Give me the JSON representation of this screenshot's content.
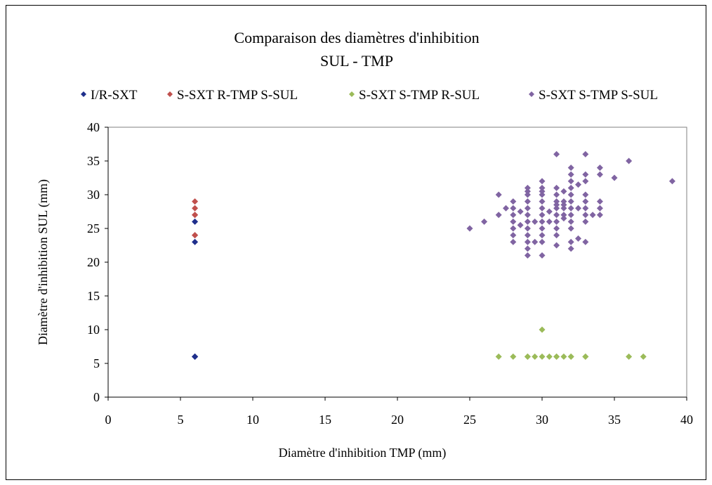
{
  "chart_data": {
    "type": "scatter",
    "title": "Comparaison des diamètres d'inhibition",
    "subtitle": "SUL - TMP",
    "xlabel": "Diamètre d'inhibition TMP (mm)",
    "ylabel": "Diamètre d'inhibition SUL (mm)",
    "xlim": [
      0,
      40
    ],
    "ylim": [
      0,
      40
    ],
    "xticks": [
      "0",
      "5",
      "10",
      "15",
      "20",
      "25",
      "30",
      "35",
      "40"
    ],
    "yticks": [
      "0",
      "5",
      "10",
      "15",
      "20",
      "25",
      "30",
      "35",
      "40"
    ],
    "grid": false,
    "legend_position": "top",
    "series": [
      {
        "name": "I/R-SXT",
        "color": "#1f2f8c",
        "marker": "diamond-icon",
        "points": [
          [
            6,
            6
          ],
          [
            6,
            6
          ],
          [
            6,
            6
          ],
          [
            6,
            23
          ],
          [
            6,
            26
          ]
        ]
      },
      {
        "name": "S-SXT R-TMP S-SUL",
        "color": "#c0504d",
        "marker": "diamond-icon",
        "points": [
          [
            6,
            24
          ],
          [
            6,
            24
          ],
          [
            6,
            27
          ],
          [
            6,
            27
          ],
          [
            6,
            28
          ],
          [
            6,
            29
          ]
        ]
      },
      {
        "name": "S-SXT S-TMP R-SUL",
        "color": "#9bbb59",
        "marker": "diamond-icon",
        "points": [
          [
            27,
            6
          ],
          [
            28,
            6
          ],
          [
            29,
            6
          ],
          [
            29,
            6
          ],
          [
            29.5,
            6
          ],
          [
            30,
            6
          ],
          [
            30,
            10
          ],
          [
            30.5,
            6
          ],
          [
            31,
            6
          ],
          [
            31,
            6
          ],
          [
            31.5,
            6
          ],
          [
            32,
            6
          ],
          [
            32,
            6
          ],
          [
            33,
            6
          ],
          [
            33,
            6
          ],
          [
            36,
            6
          ],
          [
            37,
            6
          ]
        ]
      },
      {
        "name": "S-SXT S-TMP S-SUL",
        "color": "#8064a2",
        "marker": "diamond-icon",
        "points": [
          [
            25,
            25
          ],
          [
            26,
            26
          ],
          [
            27,
            27
          ],
          [
            27,
            30
          ],
          [
            27.5,
            28
          ],
          [
            28,
            23
          ],
          [
            28,
            24
          ],
          [
            28,
            25
          ],
          [
            28,
            26
          ],
          [
            28,
            27
          ],
          [
            28,
            28
          ],
          [
            28,
            29
          ],
          [
            28.5,
            27.5
          ],
          [
            28.5,
            25.5
          ],
          [
            29,
            21
          ],
          [
            29,
            22
          ],
          [
            29,
            23
          ],
          [
            29,
            24
          ],
          [
            29,
            25
          ],
          [
            29,
            26
          ],
          [
            29,
            27
          ],
          [
            29,
            28
          ],
          [
            29,
            29
          ],
          [
            29,
            30
          ],
          [
            29,
            30.5
          ],
          [
            29,
            31
          ],
          [
            29.5,
            26
          ],
          [
            29.5,
            23
          ],
          [
            30,
            21
          ],
          [
            30,
            23
          ],
          [
            30,
            24
          ],
          [
            30,
            25
          ],
          [
            30,
            26
          ],
          [
            30,
            27
          ],
          [
            30,
            28
          ],
          [
            30,
            29
          ],
          [
            30,
            30
          ],
          [
            30,
            30.5
          ],
          [
            30,
            31
          ],
          [
            30,
            32
          ],
          [
            30.5,
            27.5
          ],
          [
            30.5,
            26
          ],
          [
            31,
            22.5
          ],
          [
            31,
            24
          ],
          [
            31,
            25
          ],
          [
            31,
            26
          ],
          [
            31,
            27
          ],
          [
            31,
            28
          ],
          [
            31,
            28.5
          ],
          [
            31,
            29
          ],
          [
            31,
            30
          ],
          [
            31,
            31
          ],
          [
            31,
            36
          ],
          [
            31.5,
            27
          ],
          [
            31.5,
            28
          ],
          [
            31.5,
            28.5
          ],
          [
            31.5,
            29
          ],
          [
            31.5,
            30.5
          ],
          [
            31.5,
            26.5
          ],
          [
            32,
            22
          ],
          [
            32,
            23
          ],
          [
            32,
            25
          ],
          [
            32,
            26
          ],
          [
            32,
            27
          ],
          [
            32,
            28
          ],
          [
            32,
            29
          ],
          [
            32,
            30
          ],
          [
            32,
            31
          ],
          [
            32,
            32
          ],
          [
            32,
            33
          ],
          [
            32,
            34
          ],
          [
            32.5,
            23.5
          ],
          [
            32.5,
            28
          ],
          [
            32.5,
            31.5
          ],
          [
            33,
            23
          ],
          [
            33,
            26
          ],
          [
            33,
            27
          ],
          [
            33,
            28
          ],
          [
            33,
            29
          ],
          [
            33,
            30
          ],
          [
            33,
            32
          ],
          [
            33,
            33
          ],
          [
            33,
            36
          ],
          [
            33.5,
            27
          ],
          [
            34,
            27
          ],
          [
            34,
            28
          ],
          [
            34,
            29
          ],
          [
            34,
            33
          ],
          [
            34,
            34
          ],
          [
            35,
            32.5
          ],
          [
            36,
            35
          ],
          [
            39,
            32
          ]
        ]
      }
    ]
  }
}
